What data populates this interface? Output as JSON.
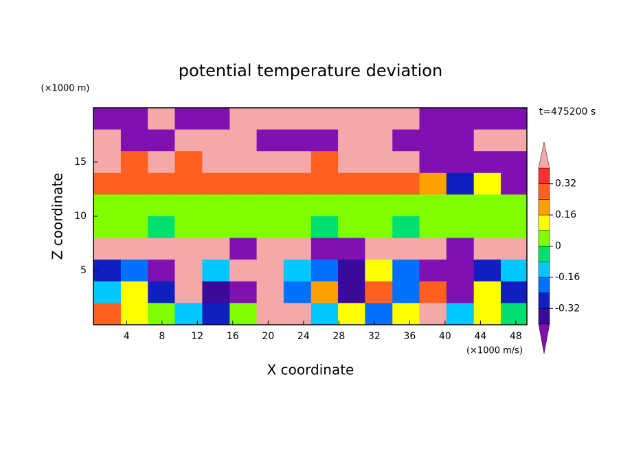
{
  "chart_data": {
    "type": "contour",
    "title": "potential temperature deviation",
    "y_unit": "(×1000 m)",
    "x_unit": "(×1000 m/s)",
    "ylabel": "Z coordinate",
    "xlabel": "X coordinate",
    "annotation": "t=475200 s",
    "xlim": [
      0.25,
      49.25
    ],
    "ylim": [
      0,
      20
    ],
    "xticks": [
      4,
      8,
      12,
      16,
      20,
      24,
      28,
      32,
      36,
      40,
      44,
      48
    ],
    "yticks": [
      5,
      10,
      15
    ],
    "x": [
      1.8,
      4.9,
      7.9,
      11,
      14.1,
      17.2,
      20.2,
      23.3,
      26.4,
      29.4,
      32.5,
      35.6,
      38.6,
      41.7,
      44.8,
      47.8
    ],
    "y": [
      19,
      17,
      15,
      13,
      11,
      9,
      7,
      5,
      3,
      1
    ],
    "z": [
      [
        -0.5,
        -0.5,
        0.5,
        -0.5,
        -0.5,
        0.5,
        0.5,
        0.5,
        0.5,
        0.5,
        0.5,
        0.5,
        -0.5,
        -0.5,
        -0.5,
        -0.5
      ],
      [
        0.5,
        -0.5,
        -0.5,
        0.5,
        0.5,
        0.5,
        -0.5,
        -0.5,
        -0.5,
        0.5,
        0.5,
        -0.5,
        -0.5,
        -0.5,
        0.5,
        0.5
      ],
      [
        0.5,
        0.3,
        0.5,
        0.3,
        0.5,
        0.5,
        0.5,
        0.5,
        0.3,
        0.5,
        0.5,
        0.5,
        -0.5,
        -0.5,
        -0.5,
        -0.5
      ],
      [
        0.28,
        0.3,
        0.3,
        0.3,
        0.28,
        0.3,
        0.3,
        0.28,
        0.3,
        0.3,
        0.3,
        0.3,
        0.2,
        -0.3,
        0.1,
        -0.5
      ],
      [
        0.05,
        0.05,
        0.06,
        0.05,
        0.05,
        0.05,
        0.06,
        0.05,
        0.05,
        0.05,
        0.05,
        0.06,
        0.05,
        0.05,
        0.05,
        0.05
      ],
      [
        0.04,
        0.03,
        -0.02,
        0.04,
        0.04,
        0.03,
        0.04,
        0.03,
        -0.02,
        0.04,
        0.03,
        -0.03,
        0.04,
        0.04,
        0.04,
        0.03
      ],
      [
        0.5,
        0.5,
        0.5,
        0.5,
        0.5,
        -0.5,
        0.5,
        0.5,
        -0.5,
        -0.5,
        0.5,
        0.5,
        0.5,
        -0.5,
        0.5,
        0.5
      ],
      [
        -0.3,
        -0.2,
        -0.45,
        0.5,
        -0.1,
        0.5,
        0.5,
        -0.1,
        -0.2,
        -0.35,
        0.1,
        -0.2,
        -0.45,
        -0.5,
        -0.3,
        -0.1
      ],
      [
        -0.15,
        0.1,
        -0.3,
        0.5,
        -0.35,
        -0.45,
        0.5,
        -0.2,
        0.2,
        -0.4,
        0.3,
        -0.2,
        0.3,
        -0.45,
        0.1,
        -0.3
      ],
      [
        0.3,
        0.15,
        0.05,
        -0.1,
        -0.3,
        0.05,
        0.5,
        0.5,
        -0.1,
        0.1,
        -0.2,
        0.15,
        0.45,
        -0.1,
        0.1,
        -0.05
      ]
    ],
    "levels": [
      -0.4,
      -0.32,
      -0.24,
      -0.16,
      -0.08,
      0,
      0.08,
      0.16,
      0.24,
      0.32,
      0.4
    ],
    "colors": [
      "#8010b0",
      "#3a0a9a",
      "#1020c0",
      "#0070ff",
      "#00c8ff",
      "#00e070",
      "#80ff00",
      "#ffff00",
      "#ffa000",
      "#ff6020",
      "#ff3030",
      "#f4a8a8"
    ],
    "colorbar_ticks": [
      0.32,
      0.16,
      0,
      -0.16,
      -0.32
    ]
  }
}
